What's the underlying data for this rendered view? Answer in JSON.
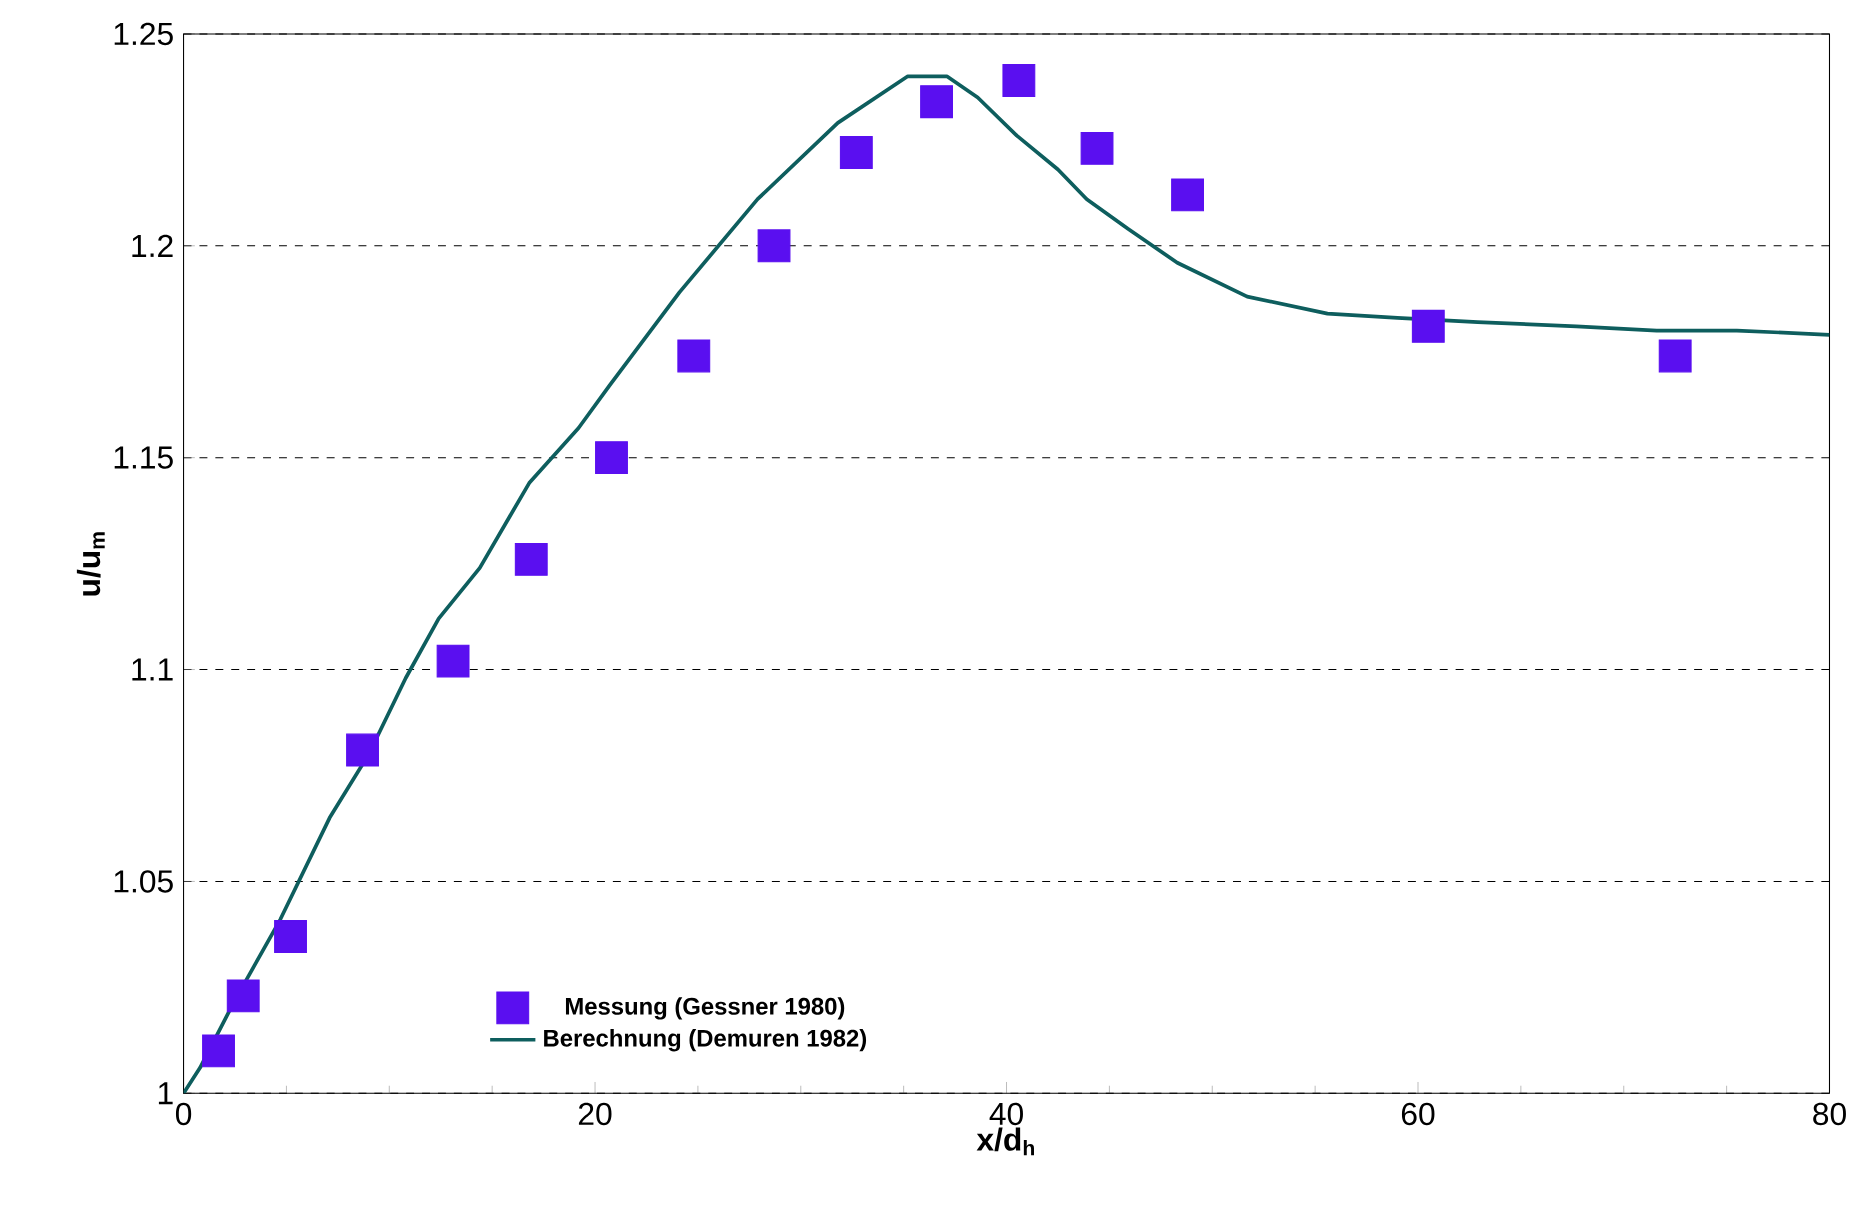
{
  "chart_data": {
    "type": "scatter",
    "xlabel": "x/d$_{h}$",
    "ylabel": "u/u$_{m}$",
    "xlim": [
      0,
      80
    ],
    "ylim": [
      1,
      1.25
    ],
    "xticks": [
      0,
      20,
      40,
      60,
      80
    ],
    "yticks": [
      1,
      1.05,
      1.1,
      1.15,
      1.2,
      1.25
    ],
    "grid": "y",
    "legend": "bottom",
    "series": [
      {
        "name": "Messung (Gessner 1980)",
        "marker": "square",
        "color": "#5a0ff0",
        "x": [
          1.7,
          2.9,
          5.2,
          8.7,
          13.1,
          16.9,
          20.8,
          24.8,
          28.7,
          32.7,
          36.6,
          40.6,
          44.4,
          48.8,
          60.5,
          72.5
        ],
        "values": [
          1.01,
          1.023,
          1.037,
          1.081,
          1.102,
          1.126,
          1.15,
          1.174,
          1.2,
          1.222,
          1.234,
          1.239,
          1.223,
          1.212,
          1.181,
          1.174
        ]
      },
      {
        "name": "Berechnung (Demuren 1982)",
        "type": "line",
        "marker": "none",
        "line_style": "solid",
        "color": "#0e5e5e",
        "x": [
          0,
          0.8,
          2.5,
          4.7,
          7.1,
          9,
          10.8,
          12.4,
          14.4,
          16.8,
          19.2,
          20.7,
          24.1,
          27.9,
          31.8,
          35.2,
          37.1,
          38.6,
          40.5,
          42.5,
          43.9,
          45.9,
          48.3,
          51.7,
          55.6,
          59,
          62.9,
          67.7,
          71.6,
          75.5,
          80
        ],
        "values": [
          1.0,
          1.006,
          1.022,
          1.041,
          1.065,
          1.08,
          1.098,
          1.112,
          1.124,
          1.144,
          1.157,
          1.167,
          1.189,
          1.211,
          1.229,
          1.24,
          1.24,
          1.235,
          1.226,
          1.218,
          1.211,
          1.204,
          1.196,
          1.188,
          1.184,
          1.183,
          1.182,
          1.181,
          1.18,
          1.18,
          1.179
        ]
      }
    ]
  }
}
